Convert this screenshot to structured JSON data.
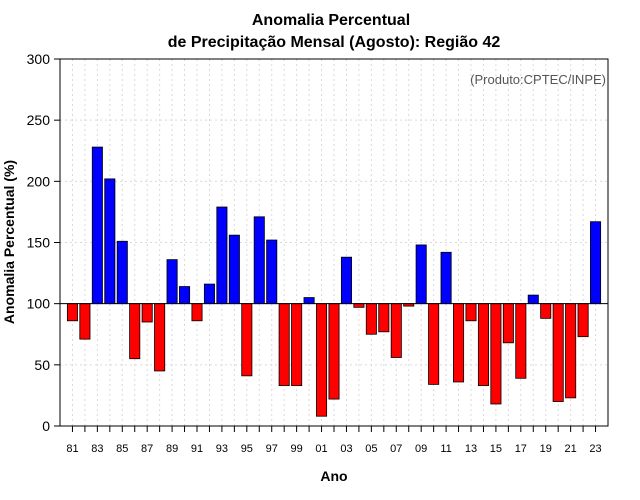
{
  "chart_data": {
    "type": "bar",
    "title_line1": "Anomalia Percentual",
    "title_line2": "de Precipitação Mensal (Agosto): Região 42",
    "xlabel": "Ano",
    "ylabel": "Anomalia Percentual (%)",
    "credit": "(Produto:CPTEC/INPE)",
    "baseline": 100,
    "ylim": [
      0,
      300
    ],
    "yticks": [
      "0",
      "50",
      "100",
      "150",
      "200",
      "250",
      "300"
    ],
    "xtick_labels": [
      "81",
      "83",
      "85",
      "87",
      "89",
      "91",
      "93",
      "95",
      "97",
      "99",
      "01",
      "03",
      "05",
      "07",
      "09",
      "11",
      "13",
      "15",
      "17",
      "19",
      "21",
      "23"
    ],
    "categories": [
      1981,
      1982,
      1983,
      1984,
      1985,
      1986,
      1987,
      1988,
      1989,
      1990,
      1991,
      1992,
      1993,
      1994,
      1995,
      1996,
      1997,
      1998,
      1999,
      2000,
      2001,
      2002,
      2003,
      2004,
      2005,
      2006,
      2007,
      2008,
      2009,
      2010,
      2011,
      2012,
      2013,
      2014,
      2015,
      2016,
      2017,
      2018,
      2019,
      2020,
      2021,
      2022,
      2023
    ],
    "values": [
      86,
      71,
      228,
      202,
      151,
      55,
      85,
      45,
      136,
      114,
      86,
      116,
      179,
      156,
      41,
      171,
      152,
      33,
      33,
      105,
      8,
      22,
      138,
      97,
      75,
      77,
      56,
      98,
      148,
      34,
      142,
      36,
      86,
      33,
      18,
      68,
      39,
      107,
      88,
      20,
      23,
      73,
      167
    ],
    "colors": {
      "above": "#0000ff",
      "below": "#ff0000",
      "grid": "#d9d9d9",
      "axis": "#000000"
    }
  }
}
